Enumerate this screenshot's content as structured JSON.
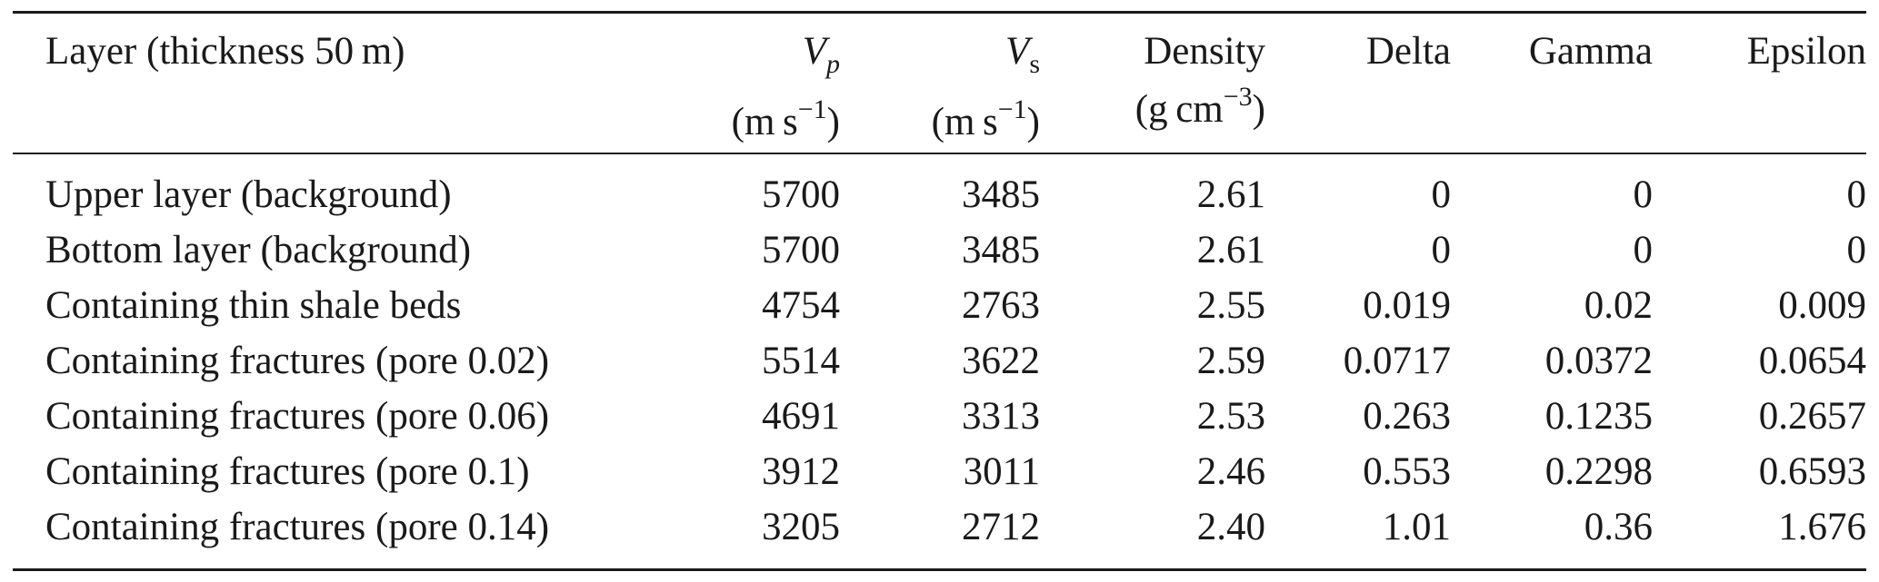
{
  "table": {
    "headers": {
      "layer": "Layer (thickness 50 m)",
      "vp_symbol": "V",
      "vp_subscript": "p",
      "vp_unit": "(m s",
      "vp_unit_exp": "−1",
      "vp_unit_close": ")",
      "vs_symbol": "V",
      "vs_subscript": "s",
      "vs_unit": "(m s",
      "vs_unit_exp": "−1",
      "vs_unit_close": ")",
      "density": "Density",
      "density_unit": "(g cm",
      "density_unit_exp": "−3",
      "density_unit_close": ")",
      "delta": "Delta",
      "gamma": "Gamma",
      "epsilon": "Epsilon"
    },
    "rows": [
      {
        "layer": "Upper layer (background)",
        "vp": "5700",
        "vs": "3485",
        "density": "2.61",
        "delta": "0",
        "gamma": "0",
        "epsilon": "0"
      },
      {
        "layer": "Bottom layer (background)",
        "vp": "5700",
        "vs": "3485",
        "density": "2.61",
        "delta": "0",
        "gamma": "0",
        "epsilon": "0"
      },
      {
        "layer": "Containing thin shale beds",
        "vp": "4754",
        "vs": "2763",
        "density": "2.55",
        "delta": "0.019",
        "gamma": "0.02",
        "epsilon": "0.009"
      },
      {
        "layer": "Containing fractures (pore 0.02)",
        "vp": "5514",
        "vs": "3622",
        "density": "2.59",
        "delta": "0.0717",
        "gamma": "0.0372",
        "epsilon": "0.0654"
      },
      {
        "layer": "Containing fractures (pore 0.06)",
        "vp": "4691",
        "vs": "3313",
        "density": "2.53",
        "delta": "0.263",
        "gamma": "0.1235",
        "epsilon": "0.2657"
      },
      {
        "layer": "Containing fractures (pore 0.1)",
        "vp": "3912",
        "vs": "3011",
        "density": "2.46",
        "delta": "0.553",
        "gamma": "0.2298",
        "epsilon": "0.6593"
      },
      {
        "layer": "Containing fractures (pore 0.14)",
        "vp": "3205",
        "vs": "2712",
        "density": "2.40",
        "delta": "1.01",
        "gamma": "0.36",
        "epsilon": "1.676"
      }
    ]
  }
}
